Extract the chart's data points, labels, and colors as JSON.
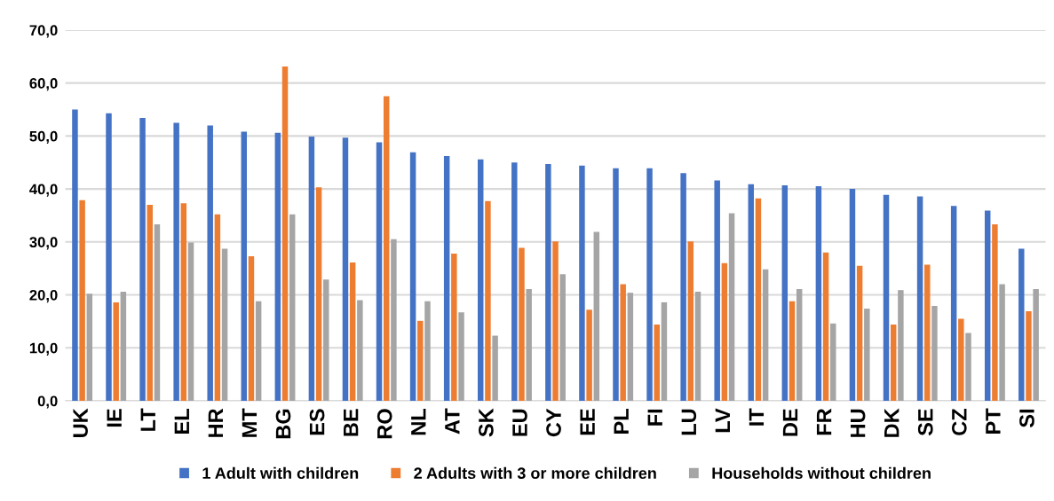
{
  "chart_data": {
    "type": "bar",
    "categories": [
      "UK",
      "IE",
      "LT",
      "EL",
      "HR",
      "MT",
      "BG",
      "ES",
      "BE",
      "RO",
      "NL",
      "AT",
      "SK",
      "EU",
      "CY",
      "EE",
      "PL",
      "FI",
      "LU",
      "LV",
      "IT",
      "DE",
      "FR",
      "HU",
      "DK",
      "SE",
      "CZ",
      "PT",
      "SI"
    ],
    "series": [
      {
        "name": "1 Adult with children",
        "color": "#4472c4",
        "values": [
          55.0,
          54.3,
          53.4,
          52.5,
          52.0,
          50.8,
          50.6,
          49.9,
          49.7,
          48.8,
          46.9,
          46.2,
          45.6,
          45.0,
          44.7,
          44.4,
          43.9,
          43.9,
          43.0,
          41.6,
          40.9,
          40.7,
          40.5,
          40.0,
          38.9,
          38.6,
          36.8,
          35.9,
          28.7
        ]
      },
      {
        "name": "2 Adults with 3 or more children",
        "color": "#ed7d31",
        "values": [
          37.9,
          18.6,
          37.0,
          37.3,
          35.2,
          27.3,
          63.1,
          40.3,
          26.1,
          57.5,
          15.1,
          27.8,
          37.7,
          28.9,
          30.1,
          17.2,
          22.0,
          14.4,
          30.1,
          26.0,
          38.2,
          18.8,
          28.0,
          25.5,
          14.4,
          25.7,
          15.5,
          33.3,
          16.9
        ]
      },
      {
        "name": "Households without children",
        "color": "#a5a5a5",
        "values": [
          20.2,
          20.6,
          33.3,
          29.9,
          28.7,
          18.8,
          35.2,
          22.9,
          19.0,
          30.5,
          18.8,
          16.7,
          12.3,
          21.1,
          23.9,
          31.9,
          20.4,
          18.6,
          20.6,
          35.4,
          24.8,
          21.1,
          14.6,
          17.4,
          20.9,
          17.9,
          12.8,
          22.0,
          21.1
        ]
      }
    ],
    "ylim": [
      0,
      70
    ],
    "yticks": [
      {
        "value": 0,
        "label": "0,0"
      },
      {
        "value": 10,
        "label": "10,0"
      },
      {
        "value": 20,
        "label": "20,0"
      },
      {
        "value": 30,
        "label": "30,0"
      },
      {
        "value": 40,
        "label": "40,0"
      },
      {
        "value": 50,
        "label": "50,0"
      },
      {
        "value": 60,
        "label": "60,0"
      },
      {
        "value": 70,
        "label": "70,0"
      }
    ],
    "grid": "y",
    "legend": "bottom"
  }
}
